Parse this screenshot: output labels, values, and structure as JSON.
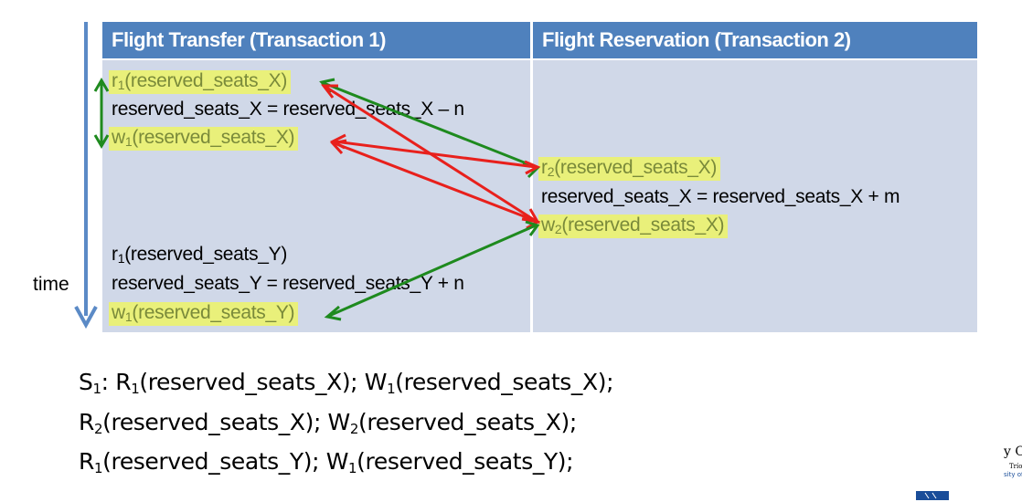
{
  "columns": {
    "t1_header": "Flight Transfer (Transaction 1)",
    "t2_header": "Flight Reservation (Transaction 2)"
  },
  "t1_ops": [
    {
      "op": "r",
      "sub": "1",
      "arg": "(reserved_seats_X)",
      "highlight": true
    },
    {
      "text": "reserved_seats_X = reserved_seats_X – n"
    },
    {
      "op": "w",
      "sub": "1",
      "arg": "(reserved_seats_X)",
      "highlight": true
    },
    {
      "op": "r",
      "sub": "1",
      "arg": "(reserved_seats_Y)",
      "highlight": false
    },
    {
      "text": "reserved_seats_Y = reserved_seats_Y + n"
    },
    {
      "op": "w",
      "sub": "1",
      "arg": "(reserved_seats_Y)",
      "highlight": true
    }
  ],
  "t2_ops": [
    {
      "op": "r",
      "sub": "2",
      "arg": "(reserved_seats_X)",
      "highlight": true
    },
    {
      "text": "reserved_seats_X = reserved_seats_X + m"
    },
    {
      "op": "w",
      "sub": "2",
      "arg": "(reserved_seats_X)",
      "highlight": true
    }
  ],
  "time_label": "time",
  "schedule": {
    "line1": {
      "prefix": "S",
      "prefix_sub": "1",
      "sep": ": ",
      "a_op": "R",
      "a_sub": "1",
      "a_arg": "(reserved_seats_X); ",
      "b_op": "W",
      "b_sub": "1",
      "b_arg": "(reserved_seats_X);"
    },
    "line2": {
      "a_op": "R",
      "a_sub": "2",
      "a_arg": "(reserved_seats_X); ",
      "b_op": "W",
      "b_sub": "2",
      "b_arg": "(reserved_seats_X);"
    },
    "line3": {
      "a_op": "R",
      "a_sub": "1",
      "a_arg": "(reserved_seats_Y); ",
      "b_op": "W",
      "b_sub": "1",
      "b_arg": "(reserved_seats_Y);"
    }
  },
  "logo": {
    "line1": "y College",
    "line2": "Tríonóide, B",
    "line3": "sity of Dubli"
  },
  "colors": {
    "header_bg": "#4f81bd",
    "body_bg": "#d0d8e8",
    "highlight": "#e9f07a",
    "highlight_text": "#7a8a3a",
    "green_arrow": "#1e8a1e",
    "red_arrow": "#e8201c",
    "time_arrow": "#5b8ac6"
  }
}
